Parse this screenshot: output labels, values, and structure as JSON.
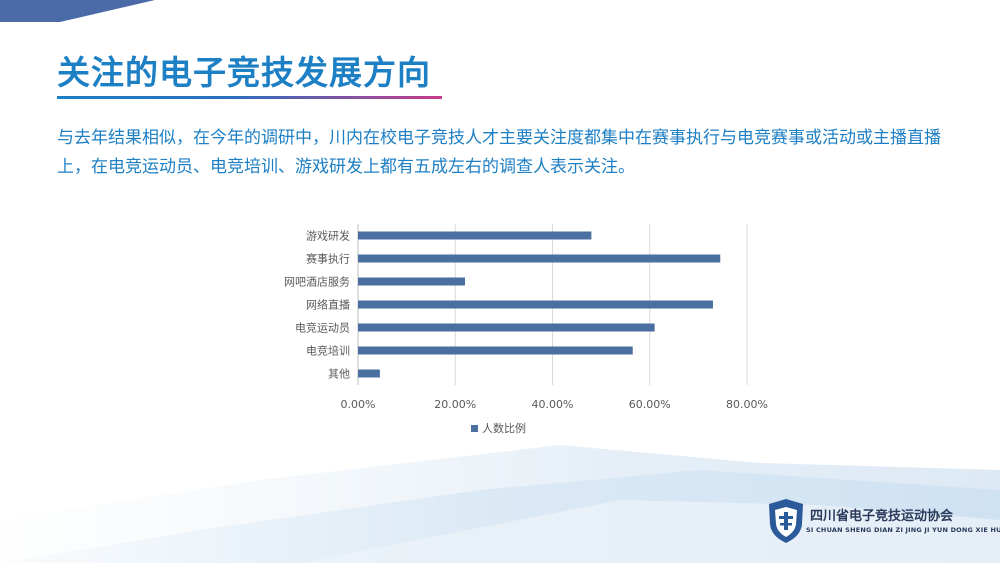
{
  "header": {
    "title": "关注的电子竞技发展方向"
  },
  "intro": {
    "text": "与去年结果相似，在今年的调研中，川内在校电子竞技人才主要关注度都集中在赛事执行与电竞赛事或活动或主播直播上，在电竞运动员、电竞培训、游戏研发上都有五成左右的调查人表示关注。"
  },
  "chart_data": {
    "type": "bar",
    "orientation": "horizontal",
    "categories": [
      "游戏研发",
      "赛事执行",
      "网吧酒店服务",
      "网络直播",
      "电竞运动员",
      "电竞培训",
      "其他"
    ],
    "series": [
      {
        "name": "人数比例",
        "values": [
          0.48,
          0.745,
          0.22,
          0.73,
          0.61,
          0.565,
          0.045
        ]
      }
    ],
    "xlim": [
      0,
      0.8
    ],
    "x_ticks": [
      "0.00%",
      "20.00%",
      "40.00%",
      "60.00%",
      "80.00%"
    ],
    "grid": true,
    "legend": "bottom",
    "bar_color": "#4a6fa0"
  },
  "logo": {
    "name": "四川省电子竞技运动协会",
    "subtitle": "SI CHUAN SHENG DIAN ZI JING JI YUN DONG XIE HUI"
  }
}
